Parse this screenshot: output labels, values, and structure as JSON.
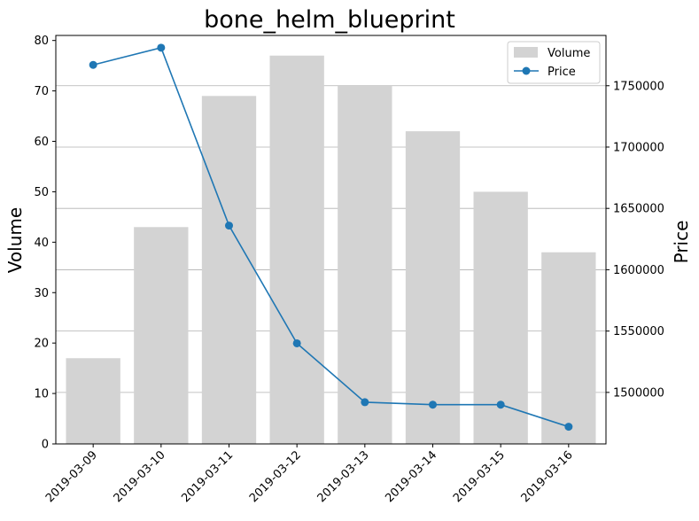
{
  "chart_data": {
    "type": "bar+line",
    "title": "bone_helm_blueprint",
    "categories": [
      "2019-03-09",
      "2019-03-10",
      "2019-03-11",
      "2019-03-12",
      "2019-03-13",
      "2019-03-14",
      "2019-03-15",
      "2019-03-16"
    ],
    "series": [
      {
        "name": "Volume",
        "type": "bar",
        "axis": "left",
        "color": "#d3d3d3",
        "values": [
          17,
          43,
          69,
          77,
          71,
          62,
          50,
          38
        ]
      },
      {
        "name": "Price",
        "type": "line",
        "axis": "right",
        "color": "#1f77b4",
        "values": [
          1767000,
          1781000,
          1636000,
          1540000,
          1492000,
          1490000,
          1490000,
          1472000
        ]
      }
    ],
    "ylabel": "Volume",
    "y2label": "Price",
    "ylim": [
      0,
      81
    ],
    "y2lim": [
      1458000,
      1791000
    ],
    "yticks": [
      0,
      10,
      20,
      30,
      40,
      50,
      60,
      70,
      80
    ],
    "y2ticks": [
      1500000,
      1550000,
      1600000,
      1650000,
      1700000,
      1750000
    ],
    "grid": "right-axis horizontal",
    "legend_position": "top-right"
  }
}
